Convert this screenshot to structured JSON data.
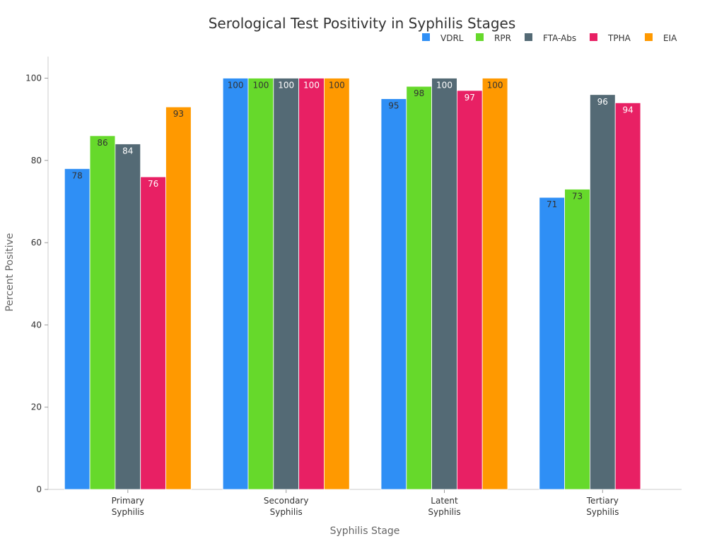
{
  "chart_data": {
    "type": "bar",
    "title": "Serological Test Positivity in Syphilis Stages",
    "xlabel": "Syphilis Stage",
    "ylabel": "Percent Positive",
    "ylim": [
      0,
      105
    ],
    "yticks": [
      0,
      20,
      40,
      60,
      80,
      100
    ],
    "grid": false,
    "legend_position": "top-right",
    "categories": [
      [
        "Primary",
        "Syphilis"
      ],
      [
        "Secondary",
        "Syphilis"
      ],
      [
        "Latent",
        "Syphilis"
      ],
      [
        "Tertiary",
        "Syphilis"
      ]
    ],
    "series": [
      {
        "name": "VDRL",
        "color": "#2F8FF5",
        "label_color": "#333333",
        "values": [
          78,
          100,
          95,
          71
        ]
      },
      {
        "name": "RPR",
        "color": "#66D92B",
        "label_color": "#333333",
        "values": [
          86,
          100,
          98,
          73
        ]
      },
      {
        "name": "FTA-Abs",
        "color": "#546A75",
        "label_color": "#FFFFFF",
        "values": [
          84,
          100,
          100,
          96
        ]
      },
      {
        "name": "TPHA",
        "color": "#E82064",
        "label_color": "#FFFFFF",
        "values": [
          76,
          100,
          97,
          94
        ]
      },
      {
        "name": "EIA",
        "color": "#FF9900",
        "label_color": "#333333",
        "values": [
          93,
          100,
          100,
          null
        ]
      }
    ]
  }
}
